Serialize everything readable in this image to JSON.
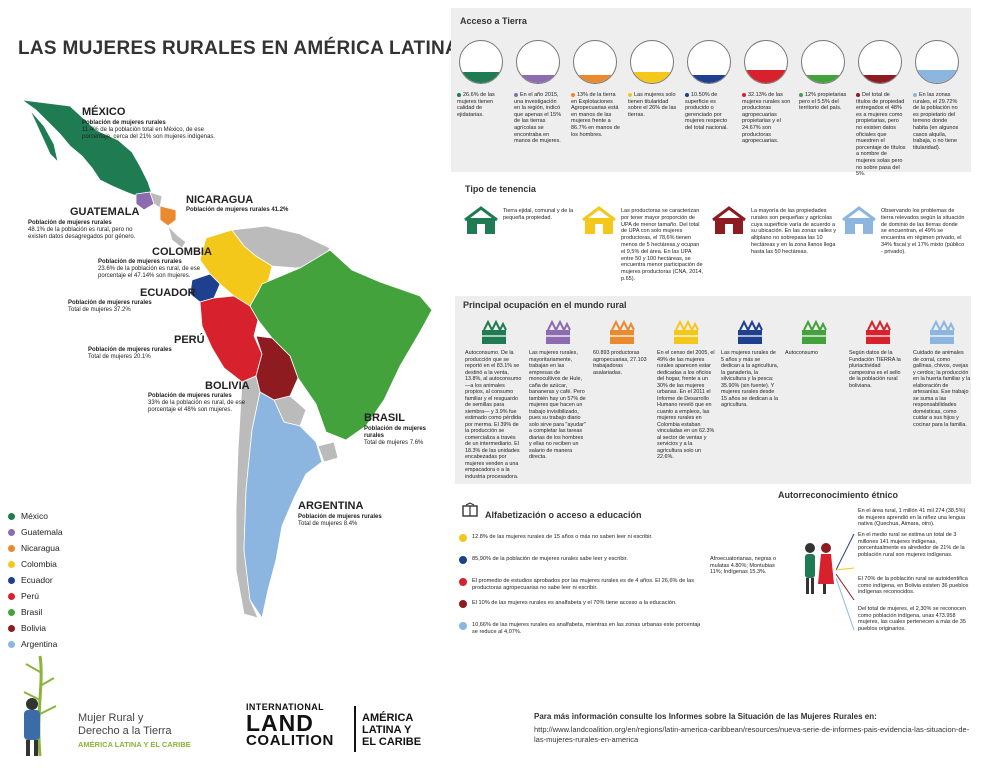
{
  "title": "LAS MUJERES RURALES EN AMÉRICA LATINA",
  "countries": {
    "mexico": {
      "name": "MÉXICO",
      "line1": "Población de mujeres rurales",
      "line2": "11.4% de la población total en México, de ese",
      "line3": "porcentaje, cerca del 21% son mujeres indígenas."
    },
    "nicaragua": {
      "name": "NICARAGUA",
      "line1": "Población de mujeres rurales 41.2%"
    },
    "guatemala": {
      "name": "GUATEMALA",
      "line1": "Población de mujeres rurales",
      "line2": "48.1% de la población es rural, pero no",
      "line3": "existen datos desagregados por género."
    },
    "colombia": {
      "name": "COLOMBIA",
      "line1": "Población de mujeres rurales",
      "line2": "23.6% de la población es rural, de ese",
      "line3": "porcentaje el 47.14% son mujeres."
    },
    "ecuador": {
      "name": "ECUADOR",
      "line1": "Población de mujeres rurales",
      "line2": "Total de mujeres 37.2%"
    },
    "peru": {
      "name": "PERÚ",
      "line1": "Población de mujeres rurales",
      "line2": "Total de mujeres 20.1%"
    },
    "bolivia": {
      "name": "BOLIVIA",
      "line1": "Población de mujeres rurales",
      "line2": "33% de la población es rural, de ese",
      "line3": "porcentaje el 48% son mujeres."
    },
    "brasil": {
      "name": "BRASIL",
      "line1": "Población de mujeres",
      "line2": "rurales",
      "line3": "Total de mujeres 7.6%"
    },
    "argentina": {
      "name": "ARGENTINA",
      "line1": "Población de mujeres rurales",
      "line2": "Total de mujeres 8.4%"
    }
  },
  "legend": [
    {
      "label": "México",
      "color": "#1e7b52"
    },
    {
      "label": "Guatemala",
      "color": "#8c6bb1"
    },
    {
      "label": "Nicaragua",
      "color": "#e98a2e"
    },
    {
      "label": "Colombia",
      "color": "#f3c81a"
    },
    {
      "label": "Ecuador",
      "color": "#1f3f8f"
    },
    {
      "label": "Perú",
      "color": "#d7222e"
    },
    {
      "label": "Brasil",
      "color": "#43a23c"
    },
    {
      "label": "Bolivia",
      "color": "#8e1b1f"
    },
    {
      "label": "Argentina",
      "color": "#8cb6e0"
    }
  ],
  "acceso": {
    "title": "Acceso a Tierra",
    "items": [
      {
        "color": "#1e7b52",
        "level": 0.27,
        "text": "26.6% de las mujeres tienen calidad de ejidatarias."
      },
      {
        "color": "#8c6bb1",
        "level": 0.15,
        "text": "En el año 2015, una investigación en la región, indicó que apenas el 15% de las tierras agrícolas se encontraba en manos de mujeres."
      },
      {
        "color": "#e98a2e",
        "level": 0.13,
        "text": "13% de la tierra en Explotaciones Agropecuarias está en manos de las mujeres frente a 86.7% en manos de los hombres."
      },
      {
        "color": "#f3c81a",
        "level": 0.26,
        "text": "Las mujeres solo tienen titularidad sobre el 26% de las tierras."
      },
      {
        "color": "#1f3f8f",
        "level": 0.11,
        "text": "10.50% de superficie es producido o gerenciado por mujeres respecto del total nacional."
      },
      {
        "color": "#d7222e",
        "level": 0.32,
        "text": "32.13% de las mujeres rurales son productoras agropecuarias propietarias y el 24.67% son productoras agropecuarias."
      },
      {
        "color": "#43a23c",
        "level": 0.12,
        "text": "12% propietarias pero el 5.5% del territorio del país."
      },
      {
        "color": "#8e1b1f",
        "level": 0.05,
        "text": "Del total de títulos de propiedad entregados el 48% es a mujeres como propietarias, pero no existen datos oficiales que muestren el porcentaje de títulos a nombre de mujeres solas pero no sobre pasa del 5%."
      },
      {
        "color": "#8cb6e0",
        "level": 0.3,
        "text": "En las zonas rurales, el 29.72% de la población no es propietario del terreno donde habita (en algunos casos alquila, trabaja, o no tiene titularidad)."
      }
    ]
  },
  "tenencia": {
    "title": "Tipo de tenencia",
    "items": [
      {
        "text": "Tierra ejidal, comunal y de la pequeña propiedad.",
        "color": "#1e7b52",
        "icon": "farm-fields-icon"
      },
      {
        "text": "Las productoras se caracterizan por tener mayor proporción de UPA de menor tamaño. Del total de UPA con solo mujeres productoras, el 78,6% tienen menos de 5 hectáreas,y ocupan el 9,5% del área. En las UPA entre 50 y 100 hectáreas, se encuentra menor participación de mujeres productoras (CNA, 2014, p.65).",
        "color": "#f3c81a",
        "icon": "barn-icon"
      },
      {
        "text": "La mayoría de las propiedades rurales son pequeñas y agrícolas cuya superficie varía de acuerdo a su ubicación. En las zonas valles y altiplano no sobrepasa las 10 hectáreas y en la zona llanos llega hasta las 50 hectáreas.",
        "color": "#8e1b1f",
        "icon": "house-icon"
      },
      {
        "text": "Observando los problemas de tierra relevados según la situación de dominio de las tierras donde se encuentran, el 49% se encuentra en régimen privado, el 34% fiscal y el 17% mixto (público - privado).",
        "color": "#8cb6e0",
        "icon": "sun-field-icon"
      }
    ]
  },
  "ocupacion": {
    "title": "Principal ocupación en el mundo rural",
    "items": [
      {
        "color": "#1e7b52",
        "icon": "crop-basket-icon",
        "text": "Autoconsumo. De la producción que se reportó en el 83.1% se destinó a la venta, 13.8%, al autoconsumo —a los animales propios, al consumo familiar y el resguardo de semillas para siembra— y 3.9% fue estimado como pérdida por merma. El 39% de la producción se comercializa a través de un intermediario. El 18.3% de las unidades encabezadas por mujeres venden a una empacadora o a la industria procesadora."
      },
      {
        "color": "#8c6bb1",
        "icon": "vegetables-icon",
        "text": "Las mujeres rurales, mayoritariamente, trabajan en las empresas de monocultivos de Hule, caña de azúcar, bananeras y café. Pero también hay un 57% de mujeres que hacen un trabajo invisibilizado, pues su trabajo diario solo sirve para \"ayudar\" a completar las tareas diarias de los hombres y ellas no reciben un salario de manera directa."
      },
      {
        "color": "#e98a2e",
        "icon": "harvest-crate-icon",
        "text": "60.893 productoras agropecuarias, 27.103 trabajadoras asalariadas."
      },
      {
        "color": "#f3c81a",
        "icon": "grain-basket-icon",
        "text": "En el censo del 2005, el 49% de las mujeres rurales aparecen estar dedicadas a los oficios del hogar, frente a un 30% de las mujeres urbanas. En el 2011 el Informe de Desarrollo Humano reveló que en cuanto a empleos, las mujeres rurales en Colombia estaban vinculadas en un 62.3% al sector de ventas y servicios y a la agricultura solo un 22.6%."
      },
      {
        "color": "#1f3f8f",
        "icon": "workers-icon",
        "text": "Las mujeres rurales de 5 años y más se dedican a la agricultura, la ganadería, la silvicultura y la pesca: 35.90% (sin fuente). Y mujeres rurales desde 15 años se dedican a la agricultura."
      },
      {
        "color": "#43a23c",
        "icon": "produce-basket-icon",
        "text": "Autoconsumo"
      },
      {
        "color": "#d7222e",
        "icon": "fruit-crate-icon",
        "text": "Según datos de la Fundación TIERRA la pluriactividad campesina es el sello de la población rural boliviana."
      },
      {
        "color": "#8cb6e0",
        "icon": "livestock-icon",
        "text": "Cuidado de animales de corral, como gallinas, chivos, ovejas y cerdos; la producción en la huerta familiar y la elaboración de artesanías. Ese trabajo se suma a las responsabilidades domésticas, como cuidar a sus hijos y cocinar para la familia."
      }
    ]
  },
  "alfabetizacion": {
    "title": "Alfabetización o acceso a educación",
    "items": [
      {
        "color": "#f3c81a",
        "text": "12.8% de las mujeres rurales de 15 años o más no saben leer ni escribir."
      },
      {
        "color": "#1f3f8f",
        "text": "85,90% de la población de mujeres rurales sabe leer y escribir."
      },
      {
        "color": "#d7222e",
        "text": "El promedio de estudios aprobados por las mujeres rurales es de 4 años. El 26,6% de las productoras agropecuarias no sabe leer ni escribir."
      },
      {
        "color": "#8e1b1f",
        "text": "El 10% de las mujeres rurales es analfabeta y el 70% tiene acceso a la educación."
      },
      {
        "color": "#8cb6e0",
        "text": "10,66% de las mujeres rurales es analfabeta, mientras en las zonas urbanas este porcentaje se reduce al 4,07%."
      }
    ]
  },
  "etnico": {
    "title": "Autorreconocimiento étnico",
    "left": "Afroecuatorianas, negras o mulatas 4.80%; Montubias 11%; Indígenas 15.3%.",
    "items": [
      {
        "text": "En el área rural, 1 millón 41 mil 274 (38,5%) de mujeres aprendió en la niñez una lengua nativa (Quechua, Aimara, otro)."
      },
      {
        "text": "En el medio rural se estima un total de 3 millones 141 mujeres indígenas, porcentualmente es alrededor de 21% de la población rural son mujeres indígenas."
      },
      {
        "text": "El 70% de la población rural se autoidentifica como indígena, en Bolivia existen 36 pueblos indígenas reconocidos."
      },
      {
        "text": "Del total de mujeres, el 2,30% se reconocen como población indígena, unas 473.958 mujeres, las cuales pertenecen a más de 35 pueblos originarios."
      }
    ]
  },
  "footer": {
    "left_line1": "Mujer Rural y",
    "left_line2": "Derecho a la Tierra",
    "left_line3": "AMÉRICA LATINA Y EL CARIBE",
    "ilc1": "INTERNATIONAL",
    "ilc2": "LAND",
    "ilc3": "COALITION",
    "region1": "AMÉRICA",
    "region2": "LATINA Y",
    "region3": "EL CARIBE",
    "info_title": "Para más información consulte los Informes sobre la Situación de las Mujeres Rurales en:",
    "info_url": "http://www.landcoalition.org/en/regions/latin-america-caribbean/resources/nueva-serie-de-informes-pais-evidencia-las-situacion-de-las-mujeres-rurales-en-america"
  }
}
